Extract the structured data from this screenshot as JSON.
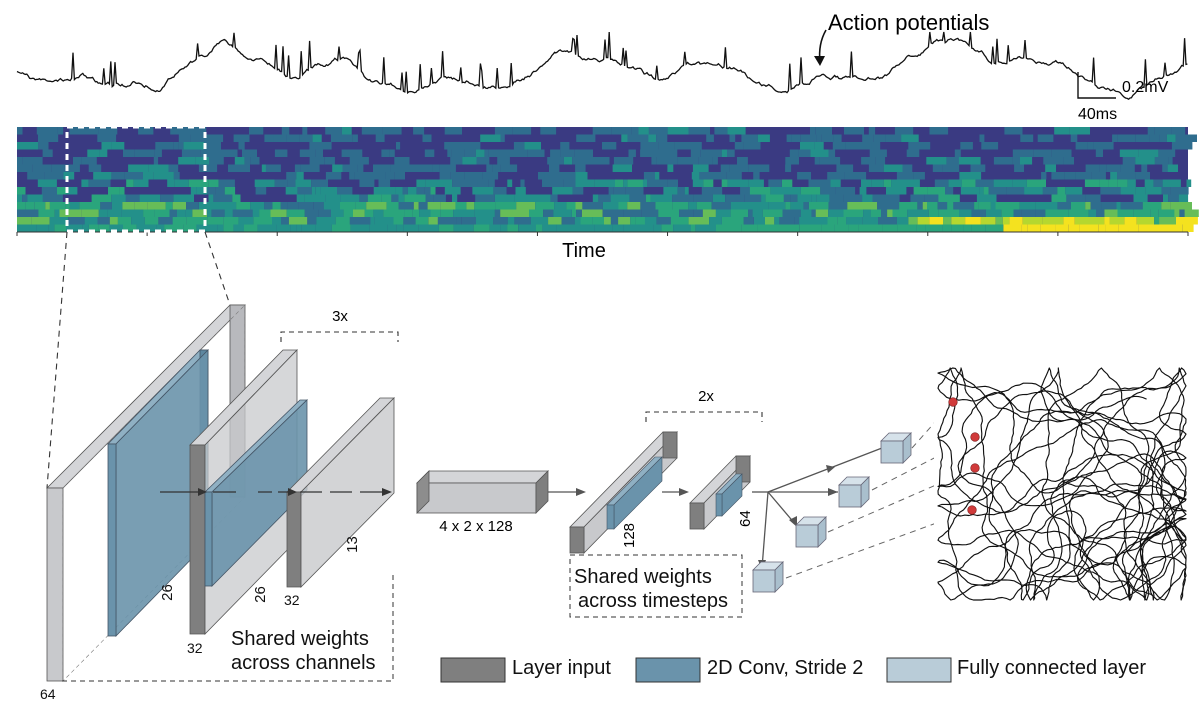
{
  "trace": {
    "annotation": "Action potentials",
    "scale_voltage": "0.2mV",
    "scale_time": "40ms"
  },
  "spectrogram": {
    "xlabel": "Time"
  },
  "network": {
    "repeat_conv": "3x",
    "repeat_time": "2x",
    "dims": {
      "input_depth": "64",
      "conv1_width": "26",
      "layer2_depth": "32",
      "conv2_width": "26",
      "layer3_depth": "32",
      "layer3_width": "13",
      "flat_shape": "4 x 2 x 128",
      "t1_width": "128",
      "t2_width": "64"
    },
    "shared_channels": [
      "Shared weights",
      "across channels"
    ],
    "shared_timesteps": [
      "Shared weights",
      "across timesteps"
    ]
  },
  "legend": [
    {
      "label": "Layer input",
      "color": "#7f7f7f"
    },
    {
      "label": "2D Conv, Stride 2",
      "color": "#6a93ab"
    },
    {
      "label": "Fully connected layer",
      "color": "#b9ccd8"
    }
  ],
  "colors": {
    "box_gray": "#c8c9cc",
    "box_dark": "#7f7f7f",
    "conv_blue": "#6a93ab",
    "fc_blue": "#b9ccd8",
    "place_dot": "#d03a3a",
    "spectro_bg": "#3a3a82"
  }
}
